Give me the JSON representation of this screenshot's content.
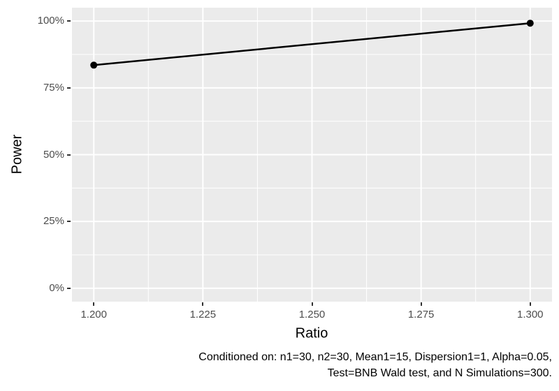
{
  "chart_data": {
    "type": "line",
    "title": "",
    "xlabel": "Ratio",
    "ylabel": "Power",
    "series": [
      {
        "name": "Power",
        "x": [
          1.2,
          1.3
        ],
        "y_percent": [
          83.5,
          99.2
        ]
      }
    ],
    "x_ticks": [
      1.2,
      1.225,
      1.25,
      1.275,
      1.3
    ],
    "x_tick_labels": [
      "1.200",
      "1.225",
      "1.250",
      "1.275",
      "1.300"
    ],
    "y_ticks": [
      0,
      25,
      50,
      75,
      100
    ],
    "y_tick_labels": [
      "0%",
      "25%",
      "50%",
      "75%",
      "100%"
    ],
    "xlim": [
      1.195,
      1.305
    ],
    "ylim_percent": [
      -5,
      105
    ],
    "grid": "major-and-minor",
    "legend_position": "none",
    "colors": {
      "panel_background": "#EBEBEB",
      "grid_major": "#FFFFFF",
      "grid_minor": "#FFFFFF",
      "line": "#000000",
      "point": "#000000",
      "tick_mark": "#333333",
      "tick_label": "#4D4D4D",
      "axis_title": "#000000",
      "caption_text": "#000000",
      "figure_background": "#FFFFFF"
    }
  },
  "axis": {
    "x_title": "Ratio",
    "y_title": "Power"
  },
  "caption": {
    "line1": "Conditioned on: n1=30, n2=30, Mean1=15, Dispersion1=1, Alpha=0.05,",
    "line2": "Test=BNB Wald test, and N Simulations=300."
  }
}
